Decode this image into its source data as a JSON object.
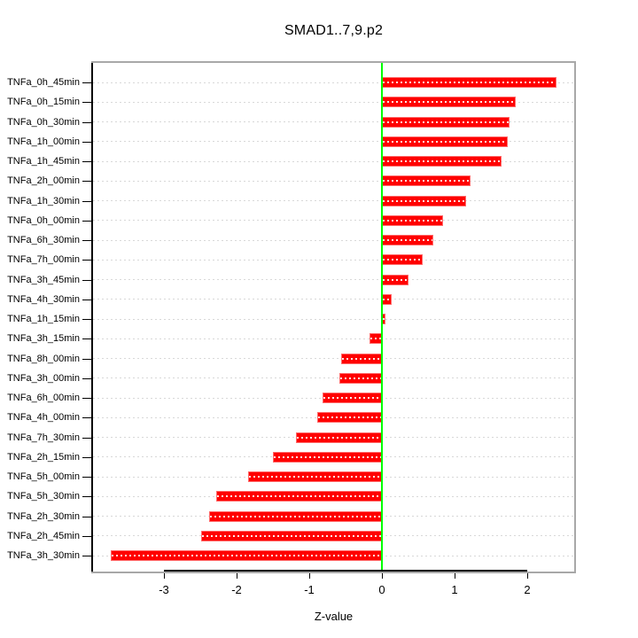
{
  "title": "SMAD1..7,9.p2",
  "chart_data": {
    "type": "bar",
    "orientation": "horizontal",
    "title": "SMAD1..7,9.p2",
    "xlabel": "Z-value",
    "ylabel": "",
    "categories": [
      "TNFa_0h_45min",
      "TNFa_0h_15min",
      "TNFa_0h_30min",
      "TNFa_1h_00min",
      "TNFa_1h_45min",
      "TNFa_2h_00min",
      "TNFa_1h_30min",
      "TNFa_0h_00min",
      "TNFa_6h_30min",
      "TNFa_7h_00min",
      "TNFa_3h_45min",
      "TNFa_4h_30min",
      "TNFa_1h_15min",
      "TNFa_3h_15min",
      "TNFa_8h_00min",
      "TNFa_3h_00min",
      "TNFa_6h_00min",
      "TNFa_4h_00min",
      "TNFa_7h_30min",
      "TNFa_2h_15min",
      "TNFa_5h_00min",
      "TNFa_5h_30min",
      "TNFa_2h_30min",
      "TNFa_2h_45min",
      "TNFa_3h_30min"
    ],
    "values": [
      2.4,
      1.84,
      1.76,
      1.73,
      1.65,
      1.22,
      1.16,
      0.84,
      0.71,
      0.56,
      0.37,
      0.14,
      0.05,
      -0.17,
      -0.56,
      -0.58,
      -0.82,
      -0.89,
      -1.18,
      -1.5,
      -1.84,
      -2.28,
      -2.38,
      -2.49,
      -3.73
    ],
    "xticks": [
      -3,
      -2,
      -1,
      0,
      1,
      2
    ],
    "xlim": [
      -3.98,
      2.65
    ],
    "grid": true,
    "legend": "none",
    "bar_color": "#FF0000",
    "zero_line_color": "#00FF00",
    "grid_color": "#D8D8D8",
    "frame_color": "#A8A8A8",
    "axis_color": "#000000",
    "background_color": "#FFFFFF"
  }
}
